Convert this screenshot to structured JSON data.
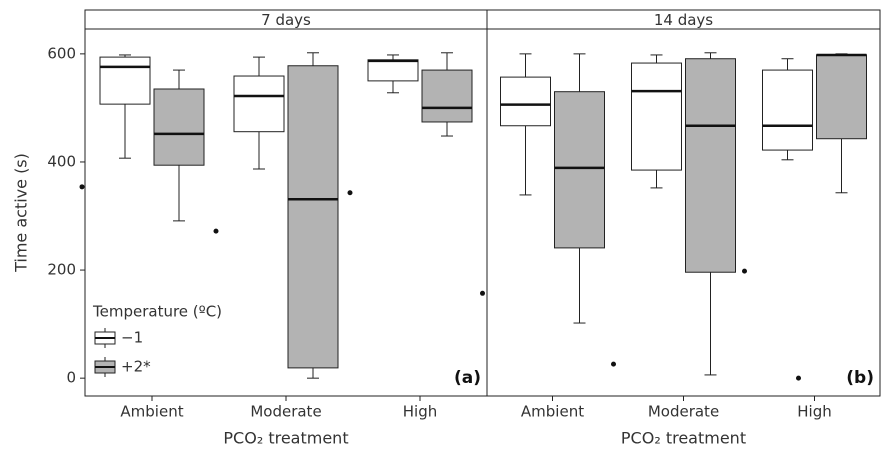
{
  "chart_data": [
    {
      "type": "box",
      "title": "7 days",
      "panel_label": "(a)",
      "ylabel": "Time active (s)",
      "xlabel": "PCO₂ treatment",
      "categories": [
        "Ambient",
        "Moderate",
        "High"
      ],
      "ylim": [
        -33,
        646
      ],
      "yticks": [
        0,
        200,
        400,
        600
      ],
      "legend": {
        "title": "Temperature (ºC)",
        "position": "lower left"
      },
      "series": [
        {
          "name": "−1",
          "color": "#ffffff",
          "whisker_low": [
            407,
            387,
            528
          ],
          "q1": [
            507,
            456,
            550
          ],
          "median": [
            576,
            522,
            587
          ],
          "q3": [
            594,
            559,
            589
          ],
          "whisker_high": [
            598,
            594,
            598
          ],
          "outliers": [
            [
              354
            ],
            [
              272
            ],
            [
              343
            ]
          ]
        },
        {
          "name": "+2*",
          "color": "#b3b3b3",
          "whisker_low": [
            291,
            0,
            448
          ],
          "q1": [
            394,
            19,
            474
          ],
          "median": [
            452,
            331,
            500
          ],
          "q3": [
            535,
            578,
            570
          ],
          "whisker_high": [
            570,
            602,
            602
          ],
          "outliers": [
            [],
            [],
            []
          ]
        }
      ]
    },
    {
      "type": "box",
      "title": "14 days",
      "panel_label": "(b)",
      "xlabel": "PCO₂ treatment",
      "categories": [
        "Ambient",
        "Moderate",
        "High"
      ],
      "ylim": [
        -33,
        646
      ],
      "series": [
        {
          "color": "#ffffff",
          "whisker_low": [
            339,
            352,
            404
          ],
          "q1": [
            467,
            385,
            422
          ],
          "median": [
            506,
            531,
            467
          ],
          "q3": [
            557,
            583,
            570
          ],
          "whisker_high": [
            600,
            598,
            591
          ],
          "outliers": [
            [
              157
            ],
            [
              26
            ],
            [
              198
            ]
          ]
        },
        {
          "color": "#b3b3b3",
          "whisker_low": [
            102,
            6,
            343
          ],
          "q1": [
            241,
            196,
            443
          ],
          "median": [
            389,
            467,
            598
          ],
          "q3": [
            530,
            591,
            598
          ],
          "whisker_high": [
            600,
            602,
            600
          ],
          "outliers": [
            [],
            [],
            [
              0
            ]
          ]
        }
      ]
    }
  ]
}
